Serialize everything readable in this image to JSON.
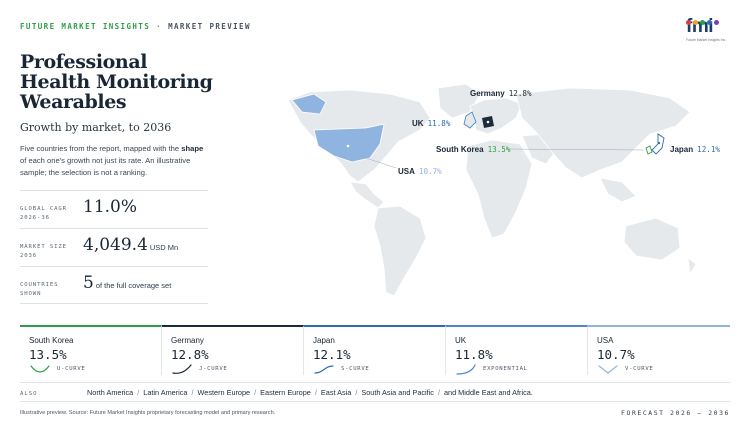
{
  "header": {
    "brand": "FUTURE MARKET INSIGHTS",
    "separator": "·",
    "mode": "MARKET PREVIEW"
  },
  "logo": {
    "mark": "fmi",
    "tagline": "Future Market Insights Inc.",
    "dot_colors": [
      "#e23b3b",
      "#f4a21b",
      "#2e9e4a",
      "#2b6cb0",
      "#7b3fb5"
    ]
  },
  "title": "Professional Health Monitoring Wearables",
  "subtitle": "Growth by market, to 2036",
  "description": {
    "pre": "Five countries from the report, mapped with the ",
    "bold": "shape",
    "post": " of each one's growth not just its rate. An illustrative sample; the selection is not a ranking."
  },
  "stats": [
    {
      "label": "GLOBAL CAGR 2026-36",
      "value": "11.0%",
      "unit": ""
    },
    {
      "label": "MARKET SIZE 2036",
      "value": "4,049.4",
      "unit": "USD Mn"
    },
    {
      "label": "COUNTRIES SHOWN",
      "value": "5",
      "unit": "of the full coverage set"
    }
  ],
  "map": {
    "land_color": "#e6e9ec",
    "highlight_color": "#8fb4e0",
    "labels": [
      {
        "name": "Germany",
        "value": "12.8%",
        "color": "#182636"
      },
      {
        "name": "UK",
        "value": "11.8%",
        "color": "#2b6cb0"
      },
      {
        "name": "South Korea",
        "value": "13.5%",
        "color": "#2e9e4a"
      },
      {
        "name": "USA",
        "value": "10.7%",
        "color": "#8fb4e0"
      },
      {
        "name": "Japan",
        "value": "12.1%",
        "color": "#2b6cb0"
      }
    ]
  },
  "cards": [
    {
      "name": "South Korea",
      "value": "13.5%",
      "shape": "U-CURVE",
      "color": "#2e9e4a"
    },
    {
      "name": "Germany",
      "value": "12.8%",
      "shape": "J-CURVE",
      "color": "#1c2a3a"
    },
    {
      "name": "Japan",
      "value": "12.1%",
      "shape": "S-CURVE",
      "color": "#2b6cb0"
    },
    {
      "name": "UK",
      "value": "11.8%",
      "shape": "EXPONENTIAL",
      "color": "#4f86c6"
    },
    {
      "name": "USA",
      "value": "10.7%",
      "shape": "V-CURVE",
      "color": "#8fb4e0"
    }
  ],
  "also": {
    "label": "ALSO",
    "regions": [
      "North America",
      "Latin America",
      "Western Europe",
      "Eastern Europe",
      "East Asia",
      "South Asia and Pacific",
      "and Middle East and Africa."
    ]
  },
  "footer": {
    "source": "Illustrative preview. Source: Future Market Insights proprietary forecasting model and primary research.",
    "forecast": "FORECAST 2026 – 2036"
  }
}
